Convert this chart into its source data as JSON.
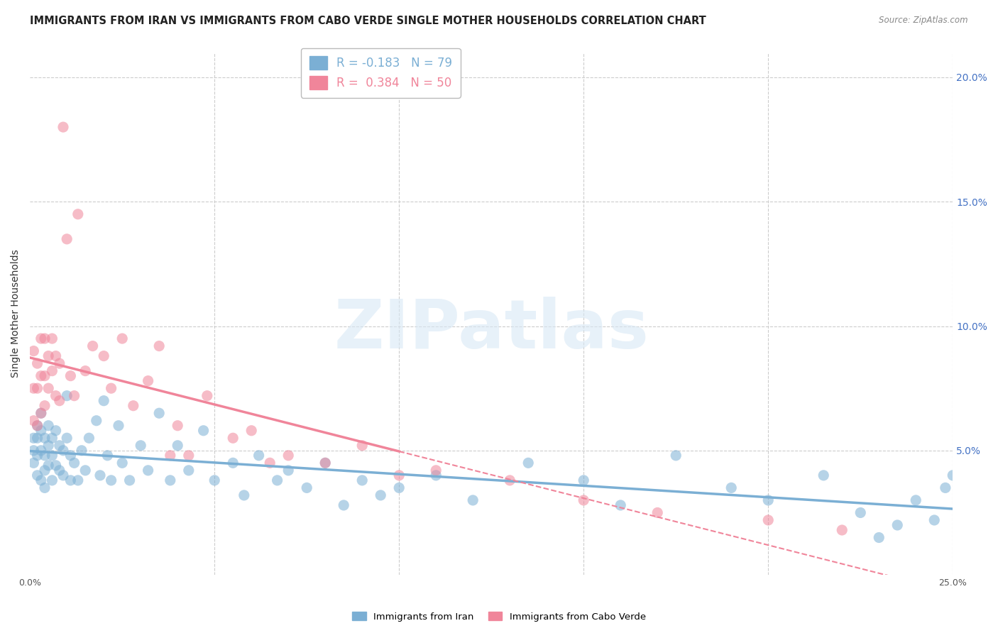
{
  "title": "IMMIGRANTS FROM IRAN VS IMMIGRANTS FROM CABO VERDE SINGLE MOTHER HOUSEHOLDS CORRELATION CHART",
  "source": "Source: ZipAtlas.com",
  "ylabel": "Single Mother Households",
  "legend1_label": "R = -0.183   N = 79",
  "legend2_label": "R =  0.384   N = 50",
  "iran_color": "#7bafd4",
  "cabo_color": "#f0859a",
  "right_tick_color": "#4472c4",
  "iran_R": -0.183,
  "cabo_R": 0.384,
  "xlim": [
    0.0,
    0.25
  ],
  "ylim": [
    0.0,
    0.21
  ],
  "grid_color": "#cccccc",
  "background_color": "#ffffff",
  "title_fontsize": 10.5,
  "axis_fontsize": 9,
  "watermark_text": "ZIPatlas",
  "iran_scatter_x": [
    0.001,
    0.001,
    0.001,
    0.002,
    0.002,
    0.002,
    0.002,
    0.003,
    0.003,
    0.003,
    0.003,
    0.004,
    0.004,
    0.004,
    0.004,
    0.005,
    0.005,
    0.005,
    0.006,
    0.006,
    0.006,
    0.007,
    0.007,
    0.008,
    0.008,
    0.009,
    0.009,
    0.01,
    0.01,
    0.011,
    0.011,
    0.012,
    0.013,
    0.014,
    0.015,
    0.016,
    0.018,
    0.019,
    0.02,
    0.021,
    0.022,
    0.024,
    0.025,
    0.027,
    0.03,
    0.032,
    0.035,
    0.038,
    0.04,
    0.043,
    0.047,
    0.05,
    0.055,
    0.058,
    0.062,
    0.067,
    0.07,
    0.075,
    0.08,
    0.085,
    0.09,
    0.095,
    0.1,
    0.11,
    0.12,
    0.135,
    0.15,
    0.16,
    0.175,
    0.19,
    0.2,
    0.215,
    0.225,
    0.23,
    0.235,
    0.24,
    0.245,
    0.248,
    0.25
  ],
  "iran_scatter_y": [
    0.055,
    0.05,
    0.045,
    0.06,
    0.055,
    0.048,
    0.04,
    0.065,
    0.058,
    0.05,
    0.038,
    0.055,
    0.048,
    0.042,
    0.035,
    0.06,
    0.052,
    0.044,
    0.055,
    0.048,
    0.038,
    0.058,
    0.044,
    0.052,
    0.042,
    0.05,
    0.04,
    0.072,
    0.055,
    0.048,
    0.038,
    0.045,
    0.038,
    0.05,
    0.042,
    0.055,
    0.062,
    0.04,
    0.07,
    0.048,
    0.038,
    0.06,
    0.045,
    0.038,
    0.052,
    0.042,
    0.065,
    0.038,
    0.052,
    0.042,
    0.058,
    0.038,
    0.045,
    0.032,
    0.048,
    0.038,
    0.042,
    0.035,
    0.045,
    0.028,
    0.038,
    0.032,
    0.035,
    0.04,
    0.03,
    0.045,
    0.038,
    0.028,
    0.048,
    0.035,
    0.03,
    0.04,
    0.025,
    0.015,
    0.02,
    0.03,
    0.022,
    0.035,
    0.04
  ],
  "cabo_scatter_x": [
    0.001,
    0.001,
    0.001,
    0.002,
    0.002,
    0.002,
    0.003,
    0.003,
    0.003,
    0.004,
    0.004,
    0.004,
    0.005,
    0.005,
    0.006,
    0.006,
    0.007,
    0.007,
    0.008,
    0.008,
    0.009,
    0.01,
    0.011,
    0.012,
    0.013,
    0.015,
    0.017,
    0.02,
    0.022,
    0.025,
    0.028,
    0.032,
    0.035,
    0.038,
    0.04,
    0.043,
    0.048,
    0.055,
    0.06,
    0.065,
    0.07,
    0.08,
    0.09,
    0.1,
    0.11,
    0.13,
    0.15,
    0.17,
    0.2,
    0.22
  ],
  "cabo_scatter_y": [
    0.09,
    0.075,
    0.062,
    0.085,
    0.075,
    0.06,
    0.095,
    0.08,
    0.065,
    0.095,
    0.08,
    0.068,
    0.088,
    0.075,
    0.095,
    0.082,
    0.088,
    0.072,
    0.085,
    0.07,
    0.18,
    0.135,
    0.08,
    0.072,
    0.145,
    0.082,
    0.092,
    0.088,
    0.075,
    0.095,
    0.068,
    0.078,
    0.092,
    0.048,
    0.06,
    0.048,
    0.072,
    0.055,
    0.058,
    0.045,
    0.048,
    0.045,
    0.052,
    0.04,
    0.042,
    0.038,
    0.03,
    0.025,
    0.022,
    0.018
  ],
  "legend1_patch_color": "#7bafd4",
  "legend2_patch_color": "#f0859a"
}
